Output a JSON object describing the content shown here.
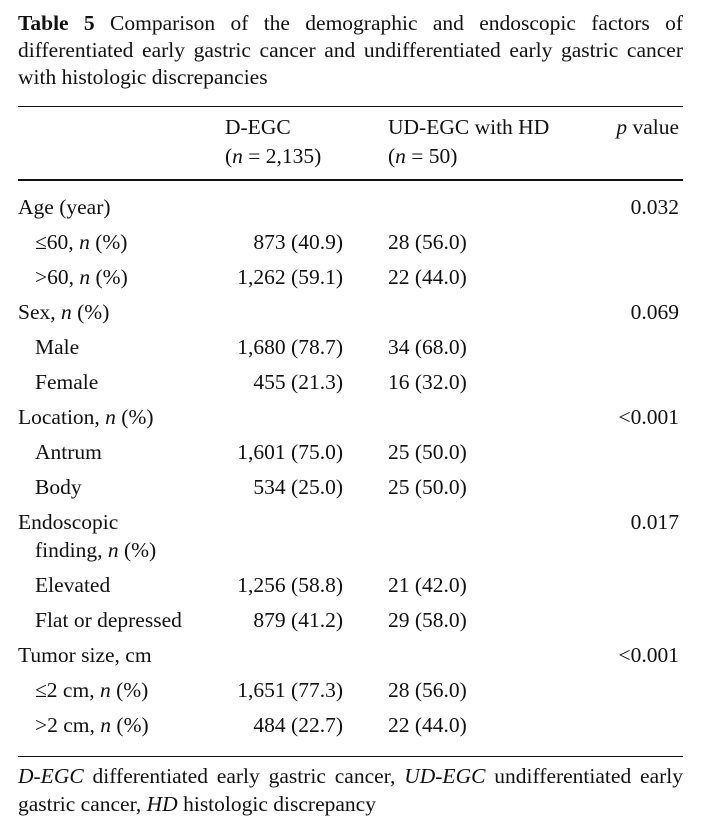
{
  "table": {
    "number_label": "Table 5",
    "caption": "Comparison of the demographic and endoscopic factors of differentiated early gastric cancer and undifferentiated early gastric cancer with histologic discrepancies",
    "columns": [
      {
        "name": "D-EGC",
        "n_label": "(n = 2,135)"
      },
      {
        "name": "UD-EGC with HD",
        "n_label": "(n = 50)"
      },
      {
        "name": "p value"
      }
    ],
    "rows": [
      {
        "label": "Age (year)",
        "indent": false,
        "d_egc": "",
        "ud_egc": "",
        "p": "0.032"
      },
      {
        "label": "≤60, n (%)",
        "indent": true,
        "d_egc": "873 (40.9)",
        "ud_egc": "28 (56.0)",
        "p": ""
      },
      {
        "label": ">60, n (%)",
        "indent": true,
        "d_egc": "1,262 (59.1)",
        "ud_egc": "22 (44.0)",
        "p": ""
      },
      {
        "label": "Sex, n (%)",
        "indent": false,
        "d_egc": "",
        "ud_egc": "",
        "p": "0.069"
      },
      {
        "label": "Male",
        "indent": true,
        "d_egc": "1,680 (78.7)",
        "ud_egc": "34 (68.0)",
        "p": ""
      },
      {
        "label": "Female",
        "indent": true,
        "d_egc": "455 (21.3)",
        "ud_egc": "16 (32.0)",
        "p": ""
      },
      {
        "label": "Location, n (%)",
        "indent": false,
        "d_egc": "",
        "ud_egc": "",
        "p": "<0.001"
      },
      {
        "label": "Antrum",
        "indent": true,
        "d_egc": "1,601 (75.0)",
        "ud_egc": "25 (50.0)",
        "p": ""
      },
      {
        "label": "Body",
        "indent": true,
        "d_egc": "534 (25.0)",
        "ud_egc": "25 (50.0)",
        "p": ""
      },
      {
        "label": "Endoscopic",
        "indent": false,
        "d_egc": "",
        "ud_egc": "",
        "p": "0.017"
      },
      {
        "label": "finding, n (%)",
        "indent": true,
        "d_egc": "",
        "ud_egc": "",
        "p": ""
      },
      {
        "label": "Elevated",
        "indent": true,
        "d_egc": "1,256 (58.8)",
        "ud_egc": "21 (42.0)",
        "p": ""
      },
      {
        "label": "Flat or depressed",
        "indent": true,
        "d_egc": "879 (41.2)",
        "ud_egc": "29 (58.0)",
        "p": ""
      },
      {
        "label": "Tumor size, cm",
        "indent": false,
        "d_egc": "",
        "ud_egc": "",
        "p": "<0.001"
      },
      {
        "label": "≤2 cm, n (%)",
        "indent": true,
        "d_egc": "1,651 (77.3)",
        "ud_egc": "28 (56.0)",
        "p": ""
      },
      {
        "label": ">2 cm, n (%)",
        "indent": true,
        "d_egc": "484 (22.7)",
        "ud_egc": "22 (44.0)",
        "p": ""
      }
    ],
    "footnote": [
      {
        "abbr": "D-EGC",
        "text": " differentiated early gastric cancer, "
      },
      {
        "abbr": "UD-EGC",
        "text": " undifferentiated early gastric cancer, "
      },
      {
        "abbr": "HD",
        "text": " histologic discrepancy"
      }
    ]
  }
}
